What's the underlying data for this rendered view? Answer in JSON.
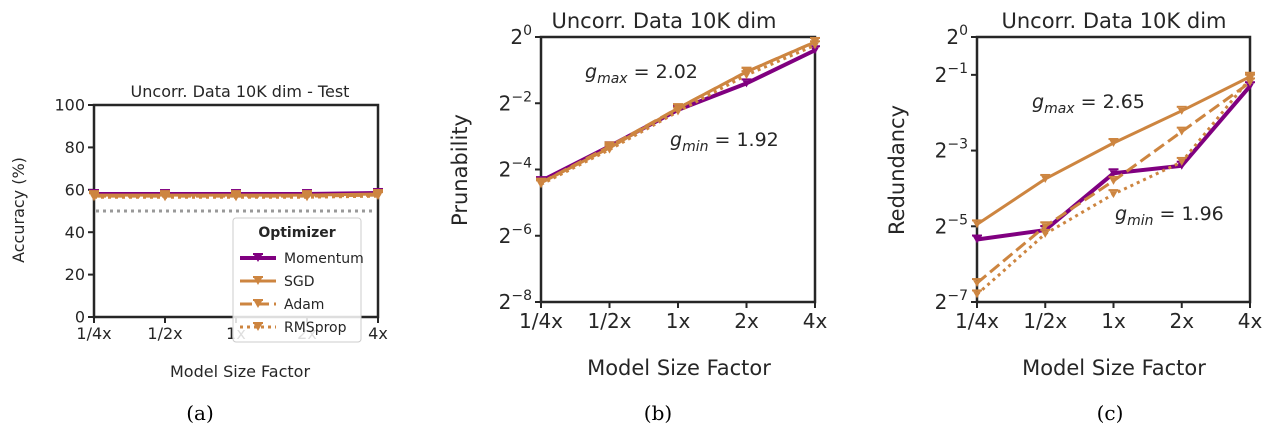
{
  "colors": {
    "Momentum": "#800080",
    "SGD": "#CD8540",
    "Adam": "#CD8540",
    "RMSprop": "#CD8540",
    "chance": "#999999",
    "axis": "#262626"
  },
  "legend": {
    "title": "Optimizer",
    "placement": "lower-right",
    "entries": [
      "Momentum",
      "SGD",
      "Adam",
      "RMSprop"
    ]
  },
  "x_ticks": [
    "1/4x",
    "1/2x",
    "1x",
    "2x",
    "4x"
  ],
  "captions": [
    "(a)",
    "(b)",
    "(c)"
  ],
  "chart_data": [
    {
      "type": "line",
      "title": "Uncorr. Data 10K dim - Test",
      "xlabel": "Model Size Factor",
      "ylabel": "Accuracy (%)",
      "categories": [
        "1/4x",
        "1/2x",
        "1x",
        "2x",
        "4x"
      ],
      "y_ticks": [
        "0",
        "20",
        "40",
        "60",
        "80",
        "100"
      ],
      "ylim": [
        0,
        100
      ],
      "reference_line": {
        "value": 50,
        "style": "dotted"
      },
      "series": [
        {
          "name": "Momentum",
          "values": [
            58,
            58,
            58,
            58,
            58.5
          ]
        },
        {
          "name": "SGD",
          "values": [
            57.5,
            57.5,
            57.5,
            57.5,
            58
          ]
        },
        {
          "name": "Adam",
          "values": [
            57,
            57,
            57,
            57,
            57.5
          ]
        },
        {
          "name": "RMSprop",
          "values": [
            56.5,
            56.5,
            56.5,
            56.5,
            57
          ]
        }
      ]
    },
    {
      "type": "line",
      "title": "Uncorr. Data 10K dim",
      "xlabel": "Model Size Factor",
      "ylabel": "Prunability",
      "yscale": "log2",
      "categories": [
        "1/4x",
        "1/2x",
        "1x",
        "2x",
        "4x"
      ],
      "y_ticks": [
        {
          "base": "2",
          "exp": "0"
        },
        {
          "base": "2",
          "exp": "−2"
        },
        {
          "base": "2",
          "exp": "−4"
        },
        {
          "base": "2",
          "exp": "−6"
        },
        {
          "base": "2",
          "exp": "−8"
        }
      ],
      "ylim_log2": [
        -8,
        0
      ],
      "annotations": [
        {
          "sym": "g",
          "sub": "max",
          "text": " = 2.02"
        },
        {
          "sym": "g",
          "sub": "min",
          "text": " = 1.92"
        }
      ],
      "series": [
        {
          "name": "Momentum",
          "log2_values": [
            -4.35,
            -3.3,
            -2.2,
            -1.4,
            -0.4
          ]
        },
        {
          "name": "SGD",
          "log2_values": [
            -4.4,
            -3.35,
            -2.15,
            -1.05,
            -0.15
          ]
        },
        {
          "name": "Adam",
          "log2_values": [
            -4.4,
            -3.3,
            -2.15,
            -1.05,
            -0.15
          ]
        },
        {
          "name": "RMSprop",
          "log2_values": [
            -4.45,
            -3.4,
            -2.25,
            -1.15,
            -0.25
          ]
        }
      ]
    },
    {
      "type": "line",
      "title": "Uncorr. Data 10K dim",
      "xlabel": "Model Size Factor",
      "ylabel": "Redundancy",
      "yscale": "log2",
      "categories": [
        "1/4x",
        "1/2x",
        "1x",
        "2x",
        "4x"
      ],
      "y_ticks": [
        {
          "base": "2",
          "exp": "0"
        },
        {
          "base": "2",
          "exp": "−1"
        },
        {
          "base": "2",
          "exp": "−3"
        },
        {
          "base": "2",
          "exp": "−5"
        },
        {
          "base": "2",
          "exp": "−7"
        }
      ],
      "ylim_log2": [
        -7,
        0
      ],
      "annotations": [
        {
          "sym": "g",
          "sub": "max",
          "text": " = 2.65"
        },
        {
          "sym": "g",
          "sub": "min",
          "text": " = 1.96"
        }
      ],
      "series": [
        {
          "name": "Momentum",
          "log2_values": [
            -5.35,
            -5.1,
            -3.6,
            -3.4,
            -1.3
          ]
        },
        {
          "name": "SGD",
          "log2_values": [
            -4.95,
            -3.75,
            -2.8,
            -1.95,
            -1.05
          ]
        },
        {
          "name": "Adam",
          "log2_values": [
            -6.5,
            -5.0,
            -3.8,
            -2.5,
            -1.2
          ]
        },
        {
          "name": "RMSprop",
          "log2_values": [
            -6.8,
            -5.2,
            -4.15,
            -3.3,
            -1.1
          ]
        }
      ]
    }
  ]
}
